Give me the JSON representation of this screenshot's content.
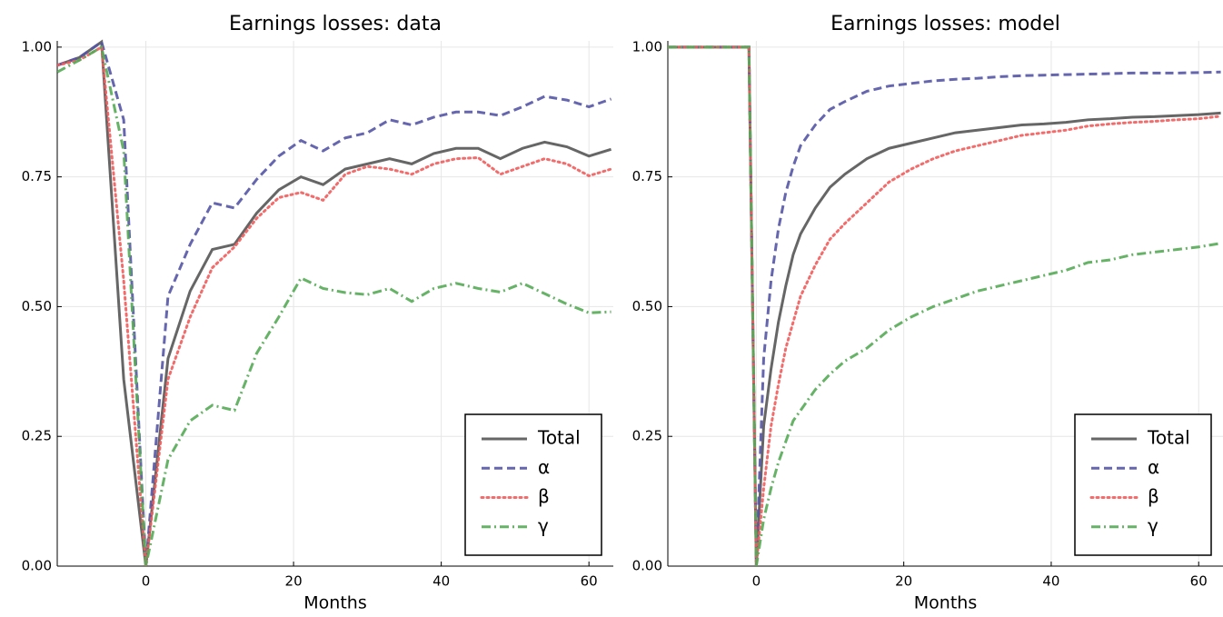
{
  "chart_data": [
    {
      "type": "line",
      "title": "Earnings losses: data",
      "x_label": "Months",
      "x": [
        -12,
        -9,
        -6,
        -3,
        0,
        3,
        6,
        9,
        12,
        15,
        18,
        21,
        24,
        27,
        30,
        33,
        36,
        39,
        42,
        45,
        48,
        51,
        54,
        57,
        60,
        63
      ],
      "series": [
        {
          "name": "Total",
          "color": "#555555",
          "dash": "solid",
          "values": [
            0.965,
            0.98,
            1.01,
            0.36,
            0.0,
            0.4,
            0.53,
            0.61,
            0.62,
            0.68,
            0.725,
            0.75,
            0.735,
            0.765,
            0.775,
            0.785,
            0.775,
            0.795,
            0.805,
            0.805,
            0.785,
            0.805,
            0.817,
            0.808,
            0.79,
            0.803
          ]
        },
        {
          "name": "α",
          "color": "#5555a6",
          "dash": "dashed",
          "values": [
            0.965,
            0.98,
            1.01,
            0.86,
            0.0,
            0.52,
            0.62,
            0.7,
            0.69,
            0.745,
            0.79,
            0.82,
            0.8,
            0.825,
            0.835,
            0.86,
            0.85,
            0.865,
            0.875,
            0.875,
            0.868,
            0.885,
            0.905,
            0.898,
            0.885,
            0.9
          ]
        },
        {
          "name": "β",
          "color": "#f25c5c",
          "dash": "dotted",
          "values": [
            0.965,
            0.975,
            1.0,
            0.55,
            0.0,
            0.36,
            0.48,
            0.575,
            0.615,
            0.67,
            0.71,
            0.72,
            0.705,
            0.755,
            0.77,
            0.765,
            0.755,
            0.775,
            0.785,
            0.787,
            0.755,
            0.77,
            0.785,
            0.775,
            0.752,
            0.765
          ]
        },
        {
          "name": "γ",
          "color": "#55aa55",
          "dash": "dashdot",
          "values": [
            0.952,
            0.975,
            1.0,
            0.8,
            0.0,
            0.205,
            0.28,
            0.31,
            0.3,
            0.41,
            0.48,
            0.555,
            0.535,
            0.527,
            0.523,
            0.535,
            0.51,
            0.535,
            0.545,
            0.535,
            0.528,
            0.545,
            0.525,
            0.505,
            0.488,
            0.49
          ]
        }
      ],
      "xlim": [
        -12,
        63.3
      ],
      "ylim": [
        0,
        1.012
      ],
      "xticks": [
        0,
        20,
        40,
        60
      ],
      "yticks": [
        {
          "value": 0,
          "label": "0.00"
        },
        {
          "value": 0.25,
          "label": "0.25"
        },
        {
          "value": 0.5,
          "label": "0.50"
        },
        {
          "value": 0.75,
          "label": "0.75"
        },
        {
          "value": 1,
          "label": "1.00"
        }
      ],
      "grid": true,
      "legend": "lower right"
    },
    {
      "type": "line",
      "title": "Earnings losses: model",
      "x_label": "Months",
      "x": [
        -12,
        -1,
        0,
        1,
        2,
        3,
        4,
        5,
        6,
        8,
        10,
        12,
        15,
        18,
        21,
        24,
        27,
        30,
        33,
        36,
        39,
        42,
        45,
        48,
        51,
        54,
        57,
        60,
        63
      ],
      "series": [
        {
          "name": "Total",
          "color": "#555555",
          "dash": "solid",
          "values": [
            1,
            1,
            0,
            0.27,
            0.38,
            0.47,
            0.54,
            0.6,
            0.64,
            0.69,
            0.73,
            0.755,
            0.785,
            0.805,
            0.815,
            0.825,
            0.835,
            0.84,
            0.845,
            0.85,
            0.852,
            0.855,
            0.86,
            0.862,
            0.865,
            0.866,
            0.868,
            0.87,
            0.873
          ]
        },
        {
          "name": "α",
          "color": "#5555a6",
          "dash": "dashed",
          "values": [
            1,
            1,
            0,
            0.4,
            0.55,
            0.65,
            0.72,
            0.77,
            0.81,
            0.85,
            0.88,
            0.895,
            0.915,
            0.925,
            0.93,
            0.935,
            0.938,
            0.94,
            0.943,
            0.945,
            0.946,
            0.947,
            0.948,
            0.949,
            0.95,
            0.95,
            0.95,
            0.951,
            0.952
          ]
        },
        {
          "name": "β",
          "color": "#f25c5c",
          "dash": "dotted",
          "values": [
            1,
            1,
            0,
            0.15,
            0.27,
            0.35,
            0.42,
            0.47,
            0.52,
            0.58,
            0.63,
            0.66,
            0.7,
            0.74,
            0.765,
            0.785,
            0.8,
            0.81,
            0.82,
            0.83,
            0.835,
            0.84,
            0.848,
            0.852,
            0.855,
            0.857,
            0.86,
            0.862,
            0.867
          ]
        },
        {
          "name": "γ",
          "color": "#55aa55",
          "dash": "dashdot",
          "values": [
            1,
            1,
            0,
            0.09,
            0.15,
            0.2,
            0.24,
            0.28,
            0.3,
            0.34,
            0.37,
            0.395,
            0.42,
            0.455,
            0.48,
            0.5,
            0.515,
            0.53,
            0.54,
            0.55,
            0.56,
            0.57,
            0.585,
            0.59,
            0.6,
            0.605,
            0.61,
            0.615,
            0.622
          ]
        }
      ],
      "xlim": [
        -12,
        63.3
      ],
      "ylim": [
        0,
        1.012
      ],
      "xticks": [
        0,
        20,
        40,
        60
      ],
      "yticks": [
        {
          "value": 0,
          "label": "0.00"
        },
        {
          "value": 0.25,
          "label": "0.25"
        },
        {
          "value": 0.5,
          "label": "0.50"
        },
        {
          "value": 0.75,
          "label": "0.75"
        },
        {
          "value": 1,
          "label": "1.00"
        }
      ],
      "grid": true,
      "legend": "lower right"
    }
  ]
}
